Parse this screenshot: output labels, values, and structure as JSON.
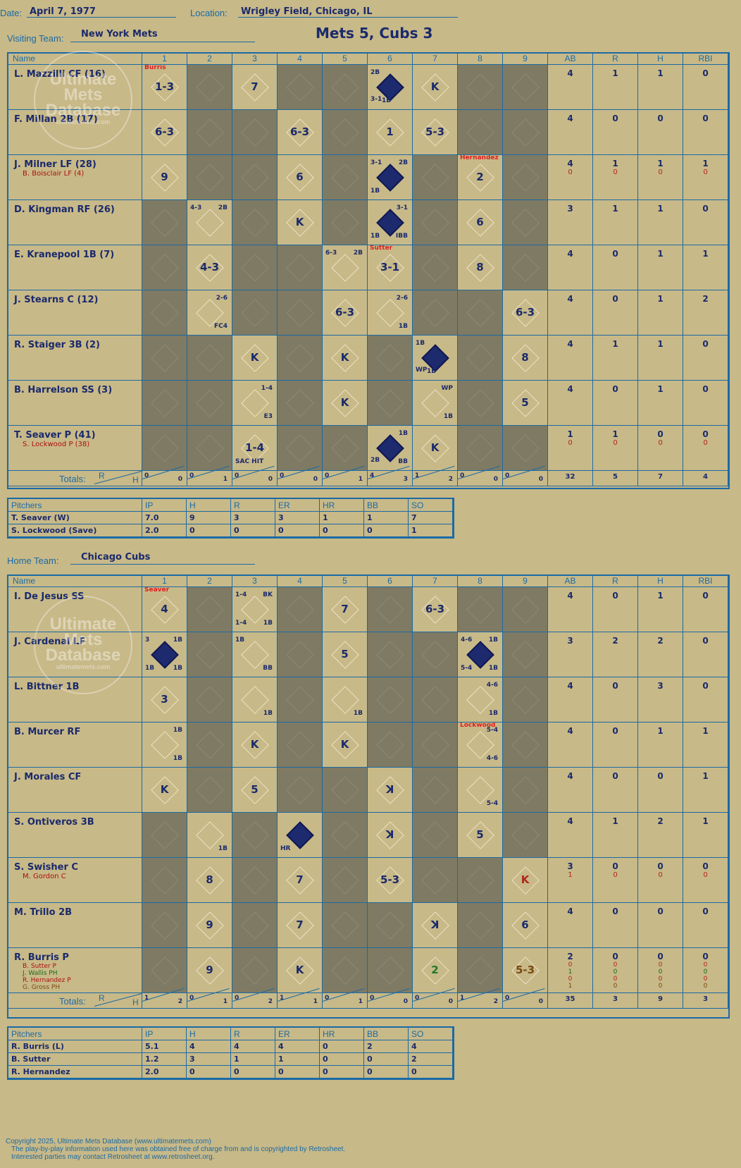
{
  "header": {
    "date_label": "Date:",
    "date": "April 7, 1977",
    "location_label": "Location:",
    "location": "Wrigley Field, Chicago, IL",
    "visiting_label": "Visiting Team:",
    "visiting_team": "New York Mets",
    "title": "Mets 5, Cubs 3",
    "home_label": "Home Team:",
    "home_team": "Chicago Cubs"
  },
  "watermark": {
    "line1": "Ultimate",
    "line2": "Mets",
    "line3": "Database",
    "line4": "ultimatemets.com"
  },
  "columns": {
    "name": "Name",
    "innings": [
      "1",
      "2",
      "3",
      "4",
      "5",
      "6",
      "7",
      "8",
      "9"
    ],
    "stats": [
      "AB",
      "R",
      "H",
      "RBI"
    ],
    "totals": "Totals:",
    "r": "R",
    "h": "H"
  },
  "visitors": {
    "players": [
      {
        "name": "L. Mazzilli CF (16)",
        "subs": [],
        "stats": [
          [
            "4"
          ],
          [
            "1"
          ],
          [
            "1"
          ],
          [
            "0"
          ]
        ],
        "cells": [
          {
            "play": "1-3",
            "red": "Burris"
          },
          {
            "gray": true
          },
          {
            "play": "7"
          },
          {
            "gray": true
          },
          {
            "gray": true
          },
          {
            "run": true,
            "n1": "2B",
            "n2": "3-1",
            "n3": "1B"
          },
          {
            "play": "K"
          },
          {
            "gray": true
          },
          {
            "gray": true
          }
        ]
      },
      {
        "name": "F. Millan 2B (17)",
        "subs": [],
        "stats": [
          [
            "4"
          ],
          [
            "0"
          ],
          [
            "0"
          ],
          [
            "0"
          ]
        ],
        "cells": [
          {
            "play": "6-3"
          },
          {
            "gray": true
          },
          {
            "gray": true
          },
          {
            "play": "6-3"
          },
          {
            "gray": true
          },
          {
            "play": "1"
          },
          {
            "play": "5-3"
          },
          {
            "gray": true
          },
          {
            "gray": true
          }
        ]
      },
      {
        "name": "J. Milner LF (28)",
        "subs": [
          "B. Boisclair LF (4)"
        ],
        "stats": [
          [
            "4",
            "0"
          ],
          [
            "1",
            "0"
          ],
          [
            "1",
            "0"
          ],
          [
            "1",
            "0"
          ]
        ],
        "cells": [
          {
            "play": "9"
          },
          {
            "gray": true
          },
          {
            "gray": true
          },
          {
            "play": "6"
          },
          {
            "gray": true
          },
          {
            "run": true,
            "n1": "3-1",
            "n1b": "2B",
            "n3": "1B"
          },
          {
            "gray": true
          },
          {
            "play": "2",
            "red": "Hernandez"
          },
          {
            "gray": true
          }
        ]
      },
      {
        "name": "D. Kingman RF (26)",
        "subs": [],
        "stats": [
          [
            "3"
          ],
          [
            "1"
          ],
          [
            "1"
          ],
          [
            "0"
          ]
        ],
        "cells": [
          {
            "gray": true
          },
          {
            "n1": "4-3",
            "n1b": "2B"
          },
          {
            "gray": true
          },
          {
            "play": "K"
          },
          {
            "gray": true
          },
          {
            "run": true,
            "n1b": "3-1",
            "n3": "1B",
            "n4": "IBB"
          },
          {
            "gray": true
          },
          {
            "play": "6"
          },
          {
            "gray": true
          }
        ]
      },
      {
        "name": "E. Kranepool 1B (7)",
        "subs": [],
        "stats": [
          [
            "4"
          ],
          [
            "0"
          ],
          [
            "1"
          ],
          [
            "1"
          ]
        ],
        "cells": [
          {
            "gray": true
          },
          {
            "play": "4-3"
          },
          {
            "gray": true
          },
          {
            "gray": true
          },
          {
            "n1": "6-3",
            "n1b": "2B"
          },
          {
            "play": "3-1",
            "red": "Sutter"
          },
          {
            "gray": true
          },
          {
            "play": "8"
          },
          {
            "gray": true
          }
        ]
      },
      {
        "name": "J. Stearns C (12)",
        "subs": [],
        "stats": [
          [
            "4"
          ],
          [
            "0"
          ],
          [
            "1"
          ],
          [
            "2"
          ]
        ],
        "cells": [
          {
            "gray": true
          },
          {
            "n1b": "2-6",
            "n4": "FC4"
          },
          {
            "gray": true
          },
          {
            "gray": true
          },
          {
            "play": "6-3"
          },
          {
            "n1b": "2-6",
            "n4": "1B"
          },
          {
            "gray": true
          },
          {
            "gray": true
          },
          {
            "play": "6-3"
          }
        ]
      },
      {
        "name": "R. Staiger 3B (2)",
        "subs": [],
        "stats": [
          [
            "4"
          ],
          [
            "1"
          ],
          [
            "1"
          ],
          [
            "0"
          ]
        ],
        "cells": [
          {
            "gray": true
          },
          {
            "gray": true
          },
          {
            "play": "K"
          },
          {
            "gray": true
          },
          {
            "play": "K"
          },
          {
            "gray": true
          },
          {
            "run": true,
            "n1": "1B",
            "n2": "WP",
            "n3": "1B"
          },
          {
            "gray": true
          },
          {
            "play": "8"
          }
        ]
      },
      {
        "name": "B. Harrelson SS (3)",
        "subs": [],
        "stats": [
          [
            "4"
          ],
          [
            "0"
          ],
          [
            "1"
          ],
          [
            "0"
          ]
        ],
        "cells": [
          {
            "gray": true
          },
          {
            "gray": true
          },
          {
            "n1b": "1-4",
            "n4": "E3"
          },
          {
            "gray": true
          },
          {
            "play": "K"
          },
          {
            "gray": true
          },
          {
            "n1b": "WP",
            "n4": "1B"
          },
          {
            "gray": true
          },
          {
            "play": "5"
          }
        ]
      },
      {
        "name": "T. Seaver P (41)",
        "subs": [
          "S. Lockwood P (38)"
        ],
        "stats": [
          [
            "1",
            "0"
          ],
          [
            "1",
            "0"
          ],
          [
            "0",
            "0"
          ],
          [
            "0",
            "0"
          ]
        ],
        "cells": [
          {
            "gray": true
          },
          {
            "gray": true
          },
          {
            "play": "1-4",
            "n3": "SAC HIT"
          },
          {
            "gray": true
          },
          {
            "gray": true
          },
          {
            "run": true,
            "n1b": "1B",
            "n2": "2B",
            "n4": "BB"
          },
          {
            "play": "K"
          },
          {
            "gray": true
          },
          {
            "gray": true
          }
        ]
      }
    ],
    "totals": [
      [
        "0",
        "0"
      ],
      [
        "0",
        "1"
      ],
      [
        "0",
        "0"
      ],
      [
        "0",
        "0"
      ],
      [
        "0",
        "1"
      ],
      [
        "4",
        "3"
      ],
      [
        "1",
        "2"
      ],
      [
        "0",
        "0"
      ],
      [
        "0",
        "0"
      ]
    ],
    "total_stats": [
      "32",
      "5",
      "7",
      "4"
    ]
  },
  "visitor_pitchers": {
    "headers": [
      "Pitchers",
      "IP",
      "H",
      "R",
      "ER",
      "HR",
      "BB",
      "SO"
    ],
    "rows": [
      [
        "T. Seaver (W)",
        "7.0",
        "9",
        "3",
        "3",
        "1",
        "1",
        "7"
      ],
      [
        "S. Lockwood (Save)",
        "2.0",
        "0",
        "0",
        "0",
        "0",
        "0",
        "1"
      ]
    ]
  },
  "home": {
    "players": [
      {
        "name": "I. De Jesus SS",
        "subs": [],
        "stats": [
          [
            "4"
          ],
          [
            "0"
          ],
          [
            "1"
          ],
          [
            "0"
          ]
        ],
        "cells": [
          {
            "play": "4",
            "red": "Seaver"
          },
          {
            "gray": true
          },
          {
            "n1": "1-4",
            "n1b": "BK",
            "n3": "1-4",
            "n4": "1B"
          },
          {
            "gray": true
          },
          {
            "play": "7"
          },
          {
            "gray": true
          },
          {
            "play": "6-3"
          },
          {
            "gray": true
          },
          {
            "gray": true
          }
        ]
      },
      {
        "name": "J. Cardenal LF",
        "subs": [],
        "stats": [
          [
            "3"
          ],
          [
            "2"
          ],
          [
            "2"
          ],
          [
            "0"
          ]
        ],
        "cells": [
          {
            "run": true,
            "n1": "3",
            "n1b": "1B",
            "n3": "1B",
            "n4": "1B"
          },
          {
            "gray": true
          },
          {
            "n1": "1B",
            "n4": "BB"
          },
          {
            "gray": true
          },
          {
            "play": "5"
          },
          {
            "gray": true
          },
          {
            "gray": true
          },
          {
            "run": true,
            "n1": "4-6",
            "n1b": "1B",
            "n3": "5-4",
            "n4": "1B"
          },
          {
            "gray": true
          }
        ]
      },
      {
        "name": "L. Bittner 1B",
        "subs": [],
        "stats": [
          [
            "4"
          ],
          [
            "0"
          ],
          [
            "3"
          ],
          [
            "0"
          ]
        ],
        "cells": [
          {
            "play": "3"
          },
          {
            "gray": true
          },
          {
            "n4": "1B"
          },
          {
            "gray": true
          },
          {
            "n4": "1B"
          },
          {
            "gray": true
          },
          {
            "gray": true
          },
          {
            "n1b": "4-6",
            "n4": "1B"
          },
          {
            "gray": true
          }
        ]
      },
      {
        "name": "B. Murcer RF",
        "subs": [],
        "stats": [
          [
            "4"
          ],
          [
            "0"
          ],
          [
            "1"
          ],
          [
            "1"
          ]
        ],
        "cells": [
          {
            "n1b": "1B",
            "n4": "1B"
          },
          {
            "gray": true
          },
          {
            "play": "K"
          },
          {
            "gray": true
          },
          {
            "play": "K"
          },
          {
            "gray": true
          },
          {
            "gray": true
          },
          {
            "n1b": "5-4",
            "n4": "4-6",
            "red": "Lockwood"
          },
          {
            "gray": true
          }
        ]
      },
      {
        "name": "J. Morales CF",
        "subs": [],
        "stats": [
          [
            "4"
          ],
          [
            "0"
          ],
          [
            "0"
          ],
          [
            "1"
          ]
        ],
        "cells": [
          {
            "play": "K"
          },
          {
            "gray": true
          },
          {
            "play": "5"
          },
          {
            "gray": true
          },
          {
            "gray": true
          },
          {
            "play": "ꓘ"
          },
          {
            "gray": true
          },
          {
            "n4": "5-4"
          },
          {
            "gray": true
          }
        ]
      },
      {
        "name": "S. Ontiveros 3B",
        "subs": [],
        "stats": [
          [
            "4"
          ],
          [
            "1"
          ],
          [
            "2"
          ],
          [
            "1"
          ]
        ],
        "cells": [
          {
            "gray": true
          },
          {
            "n4": "1B"
          },
          {
            "gray": true
          },
          {
            "run": true,
            "n3": "HR"
          },
          {
            "gray": true
          },
          {
            "play": "ꓘ"
          },
          {
            "gray": true
          },
          {
            "play": "5"
          },
          {
            "gray": true
          }
        ]
      },
      {
        "name": "S. Swisher C",
        "subs": [
          "M. Gordon C"
        ],
        "stats": [
          [
            "3",
            "1"
          ],
          [
            "0",
            "0"
          ],
          [
            "0",
            "0"
          ],
          [
            "0",
            "0"
          ]
        ],
        "cells": [
          {
            "gray": true
          },
          {
            "play": "8"
          },
          {
            "gray": true
          },
          {
            "play": "7"
          },
          {
            "gray": true
          },
          {
            "play": "5-3"
          },
          {
            "gray": true
          },
          {
            "gray": true
          },
          {
            "play": "K",
            "style": "k-red"
          }
        ]
      },
      {
        "name": "M. Trillo 2B",
        "subs": [],
        "stats": [
          [
            "4"
          ],
          [
            "0"
          ],
          [
            "0"
          ],
          [
            "0"
          ]
        ],
        "cells": [
          {
            "gray": true
          },
          {
            "play": "9"
          },
          {
            "gray": true
          },
          {
            "play": "7"
          },
          {
            "gray": true
          },
          {
            "gray": true
          },
          {
            "play": "ꓘ"
          },
          {
            "gray": true
          },
          {
            "play": "6"
          }
        ]
      },
      {
        "name": "R. Burris P",
        "subs": [
          "B. Sutter P",
          "J. Wallis PH",
          "R. Hernandez P",
          "G. Gross PH"
        ],
        "subcolors": [
          "red",
          "green",
          "red",
          "brown"
        ],
        "stats": [
          [
            "2",
            "0",
            "1",
            "0",
            "1"
          ],
          [
            "0",
            "0",
            "0",
            "0",
            "0"
          ],
          [
            "0",
            "0",
            "0",
            "0",
            "0"
          ],
          [
            "0",
            "0",
            "0",
            "0",
            "0"
          ]
        ],
        "cells": [
          {
            "gray": true
          },
          {
            "play": "9"
          },
          {
            "gray": true
          },
          {
            "play": "K"
          },
          {
            "gray": true
          },
          {
            "gray": true
          },
          {
            "play": "2",
            "style": "k-green"
          },
          {
            "gray": true
          },
          {
            "play": "5-3",
            "style": "k-brown"
          }
        ]
      }
    ],
    "totals": [
      [
        "1",
        "2"
      ],
      [
        "0",
        "1"
      ],
      [
        "0",
        "2"
      ],
      [
        "1",
        "1"
      ],
      [
        "0",
        "1"
      ],
      [
        "0",
        "0"
      ],
      [
        "0",
        "0"
      ],
      [
        "1",
        "2"
      ],
      [
        "0",
        "0"
      ]
    ],
    "total_stats": [
      "35",
      "3",
      "9",
      "3"
    ]
  },
  "home_pitchers": {
    "headers": [
      "Pitchers",
      "IP",
      "H",
      "R",
      "ER",
      "HR",
      "BB",
      "SO"
    ],
    "rows": [
      [
        "R. Burris (L)",
        "5.1",
        "4",
        "4",
        "4",
        "0",
        "2",
        "4"
      ],
      [
        "B. Sutter",
        "1.2",
        "3",
        "1",
        "1",
        "0",
        "0",
        "2"
      ],
      [
        "R. Hernandez",
        "2.0",
        "0",
        "0",
        "0",
        "0",
        "0",
        "0"
      ]
    ]
  },
  "footer": {
    "line1": "Copyright 2025, Ultimate Mets Database (www.ultimatemets.com)",
    "line2": "The play-by-play information used here was obtained free of charge from and is copyrighted by Retrosheet.",
    "line3": "Interested parties may contact Retrosheet at www.retrosheet.org."
  },
  "colors": {
    "background": "#c8b988",
    "grid": "#1b6aa5",
    "ink": "#1a2a6c",
    "gray_cell": "#7f7a63",
    "red": "#e02020"
  }
}
